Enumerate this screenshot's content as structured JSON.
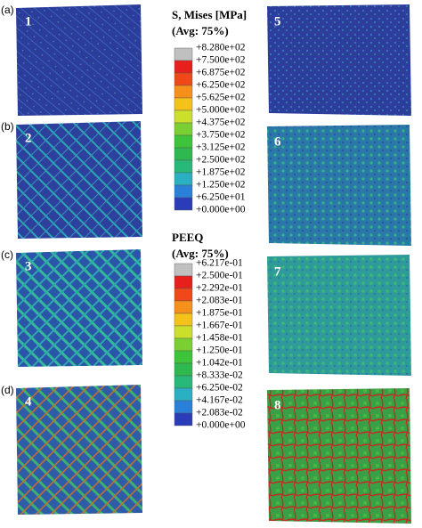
{
  "panels": [
    {
      "label": "(a)",
      "left": "1",
      "right": "5"
    },
    {
      "label": "(b)",
      "left": "2",
      "right": "6"
    },
    {
      "label": "(c)",
      "left": "3",
      "right": "7"
    },
    {
      "label": "(d)",
      "left": "4",
      "right": "8"
    }
  ],
  "legends": [
    {
      "title": "S, Mises [MPa]",
      "subtitle": "(Avg: 75%)",
      "labels": [
        "+8.280e+02",
        "+7.500e+02",
        "+6.875e+02",
        "+6.250e+02",
        "+5.625e+02",
        "+5.000e+02",
        "+4.375e+02",
        "+3.750e+02",
        "+3.125e+02",
        "+2.500e+02",
        "+1.875e+02",
        "+1.250e+02",
        "+6.250e+01",
        "+0.000e+00"
      ],
      "colors": [
        "#c0c0c0",
        "#e8201c",
        "#f04818",
        "#f5901a",
        "#f5c21a",
        "#cbe02a",
        "#7ad032",
        "#3ec43a",
        "#2eb84e",
        "#28b87a",
        "#2ab0c2",
        "#2a80d8",
        "#2a3cb8"
      ]
    },
    {
      "title": "PEEQ",
      "subtitle": "(Avg: 75%)",
      "labels": [
        "+6.217e-01",
        "+2.500e-01",
        "+2.292e-01",
        "+2.083e-01",
        "+1.875e-01",
        "+1.667e-01",
        "+1.458e-01",
        "+1.250e-01",
        "+1.042e-01",
        "+8.333e-02",
        "+6.250e-02",
        "+4.167e-02",
        "+2.083e-02",
        "+0.000e+00"
      ],
      "colors": [
        "#c0c0c0",
        "#e8201c",
        "#f04818",
        "#f5901a",
        "#f5c21a",
        "#cbe02a",
        "#7ad032",
        "#3ec43a",
        "#2eb84e",
        "#28b87a",
        "#2ab0c2",
        "#2a80d8",
        "#2a3cb8"
      ]
    }
  ]
}
